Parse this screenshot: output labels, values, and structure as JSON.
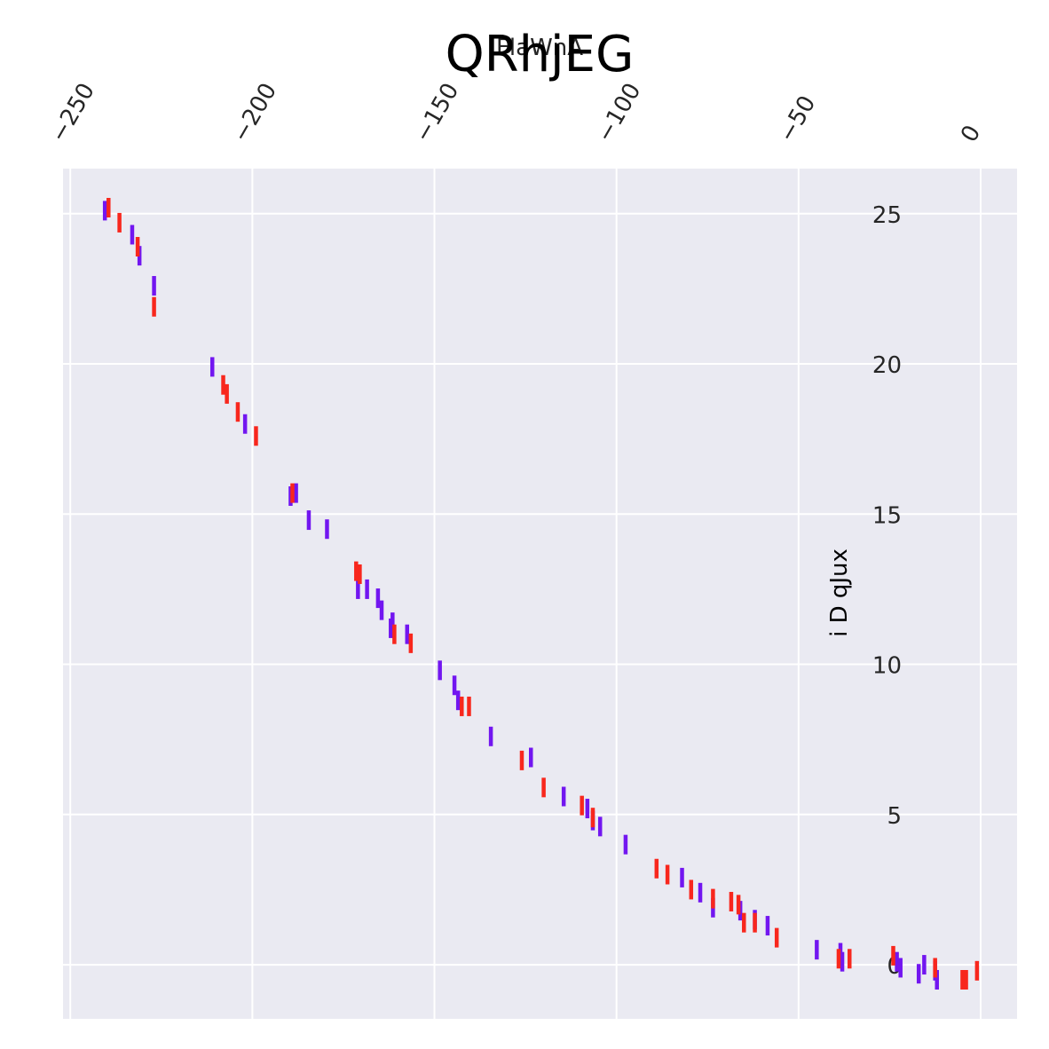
{
  "chart_data": {
    "type": "scatter",
    "marker": "vertical-line",
    "title": "QRhjEG",
    "xlabel": "FlaWnA",
    "ylabel": "i D qJux",
    "x_axis_position": "top",
    "y_axis_position": "inside-right",
    "xlim": [
      -252,
      10
    ],
    "ylim": [
      -1.8,
      26.5
    ],
    "grid": true,
    "x_ticks": [
      -250,
      -200,
      -150,
      -100,
      -50,
      0
    ],
    "x_tick_labels": [
      "−250",
      "−200",
      "−150",
      "−100",
      "−50",
      "0"
    ],
    "y_ticks": [
      0,
      5,
      10,
      15,
      20,
      25
    ],
    "y_tick_labels": [
      "0",
      "5",
      "10",
      "15",
      "20",
      "25"
    ],
    "colors": {
      "purple": "#7216f0",
      "red": "#f8271d",
      "background": "#eaeaf2",
      "grid": "#ffffff"
    },
    "series": [
      {
        "color": "#7216f0",
        "points": [
          [
            -240.5,
            25.1
          ],
          [
            -233.0,
            24.3
          ],
          [
            -231.0,
            23.6
          ],
          [
            -227.0,
            22.6
          ],
          [
            -211.0,
            19.9
          ],
          [
            -202.0,
            18.0
          ],
          [
            -189.5,
            15.6
          ],
          [
            -188.0,
            15.7
          ],
          [
            -184.5,
            14.8
          ],
          [
            -179.5,
            14.5
          ],
          [
            -171.0,
            12.5
          ],
          [
            -168.5,
            12.5
          ],
          [
            -165.5,
            12.2
          ],
          [
            -164.5,
            11.8
          ],
          [
            -162.0,
            11.2
          ],
          [
            -161.5,
            11.4
          ],
          [
            -157.5,
            11.0
          ],
          [
            -148.5,
            9.8
          ],
          [
            -144.5,
            9.3
          ],
          [
            -143.5,
            8.8
          ],
          [
            -134.5,
            7.6
          ],
          [
            -123.5,
            6.9
          ],
          [
            -114.5,
            5.6
          ],
          [
            -108.0,
            5.2
          ],
          [
            -106.5,
            4.8
          ],
          [
            -104.5,
            4.6
          ],
          [
            -97.5,
            4.0
          ],
          [
            -82.0,
            2.9
          ],
          [
            -77.0,
            2.4
          ],
          [
            -73.5,
            1.9
          ],
          [
            -66.0,
            1.8
          ],
          [
            -62.0,
            1.5
          ],
          [
            -58.5,
            1.3
          ],
          [
            -45.0,
            0.5
          ],
          [
            -38.5,
            0.4
          ],
          [
            -38.0,
            0.1
          ],
          [
            -23.0,
            0.1
          ],
          [
            -22.0,
            -0.1
          ],
          [
            -17.0,
            -0.3
          ],
          [
            -15.5,
            0.0
          ],
          [
            -12.5,
            -0.2
          ],
          [
            -12.0,
            -0.5
          ]
        ]
      },
      {
        "color": "#f8271d",
        "points": [
          [
            -239.5,
            25.2
          ],
          [
            -236.5,
            24.7
          ],
          [
            -231.5,
            23.9
          ],
          [
            -227.0,
            21.9
          ],
          [
            -208.0,
            19.3
          ],
          [
            -207.0,
            19.0
          ],
          [
            -204.0,
            18.4
          ],
          [
            -199.0,
            17.6
          ],
          [
            -189.0,
            15.7
          ],
          [
            -171.5,
            13.1
          ],
          [
            -170.5,
            13.0
          ],
          [
            -161.0,
            11.0
          ],
          [
            -156.5,
            10.7
          ],
          [
            -142.5,
            8.6
          ],
          [
            -140.5,
            8.6
          ],
          [
            -126.0,
            6.8
          ],
          [
            -120.0,
            5.9
          ],
          [
            -109.5,
            5.3
          ],
          [
            -106.5,
            4.9
          ],
          [
            -89.0,
            3.2
          ],
          [
            -86.0,
            3.0
          ],
          [
            -79.5,
            2.5
          ],
          [
            -73.5,
            2.2
          ],
          [
            -68.5,
            2.1
          ],
          [
            -66.5,
            2.0
          ],
          [
            -65.0,
            1.4
          ],
          [
            -62.0,
            1.4
          ],
          [
            -56.0,
            0.9
          ],
          [
            -39.0,
            0.2
          ],
          [
            -36.0,
            0.2
          ],
          [
            -24.0,
            0.3
          ],
          [
            -12.5,
            -0.1
          ],
          [
            -5.0,
            -0.5
          ],
          [
            -4.0,
            -0.5
          ],
          [
            -1.0,
            -0.2
          ]
        ]
      }
    ]
  }
}
